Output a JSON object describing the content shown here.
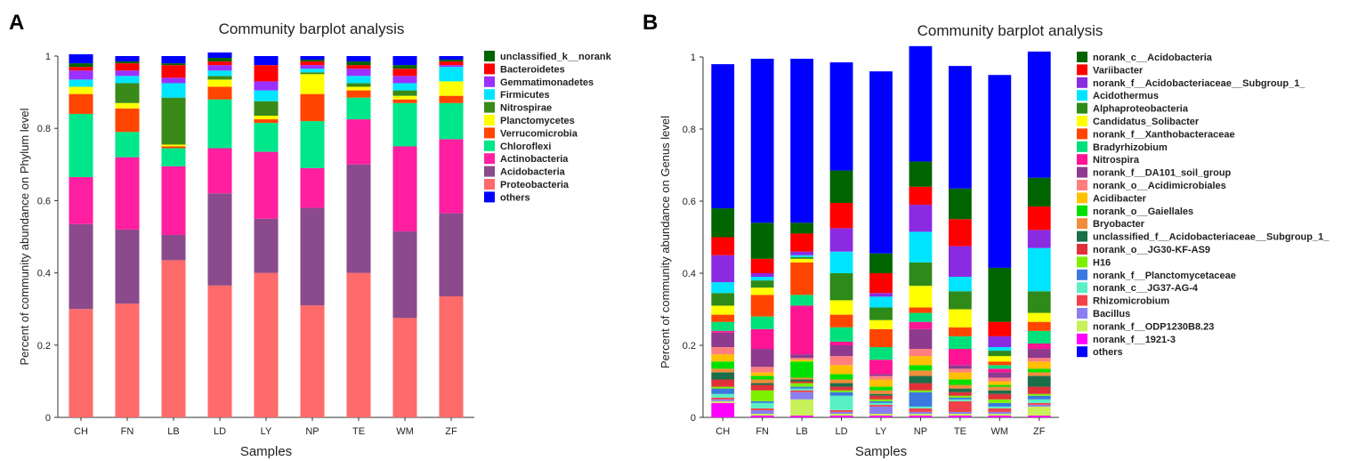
{
  "chart_data": [
    {
      "panel": "A",
      "type": "bar",
      "stacked": true,
      "title": "Community barplot analysis",
      "xlabel": "Samples",
      "ylabel": "Percent of community abundance on Phylum level",
      "ylim": [
        0,
        1
      ],
      "yticks": [
        "0",
        "0.2",
        "0.4",
        "0.6",
        "0.8",
        "1"
      ],
      "categories": [
        "CH",
        "FN",
        "LB",
        "LD",
        "LY",
        "NP",
        "TE",
        "WM",
        "ZF"
      ],
      "series": [
        {
          "name": "Proteobacteria",
          "color": "#ff6a6a",
          "values": [
            0.3,
            0.315,
            0.435,
            0.365,
            0.4,
            0.31,
            0.4,
            0.275,
            0.335
          ]
        },
        {
          "name": "Acidobacteria",
          "color": "#8b4a8b",
          "values": [
            0.235,
            0.205,
            0.07,
            0.255,
            0.15,
            0.27,
            0.3,
            0.24,
            0.23
          ]
        },
        {
          "name": "Actinobacteria",
          "color": "#ff1fa0",
          "values": [
            0.13,
            0.2,
            0.19,
            0.125,
            0.185,
            0.11,
            0.125,
            0.235,
            0.205
          ]
        },
        {
          "name": "Chloroflexi",
          "color": "#00e68a",
          "values": [
            0.175,
            0.07,
            0.05,
            0.135,
            0.08,
            0.13,
            0.06,
            0.12,
            0.1
          ]
        },
        {
          "name": "Verrucomicrobia",
          "color": "#ff4500",
          "values": [
            0.055,
            0.065,
            0.005,
            0.035,
            0.01,
            0.075,
            0.02,
            0.01,
            0.02
          ]
        },
        {
          "name": "Planctomycetes",
          "color": "#ffff00",
          "values": [
            0.02,
            0.015,
            0.005,
            0.02,
            0.01,
            0.055,
            0.01,
            0.01,
            0.04
          ]
        },
        {
          "name": "Nitrospirae",
          "color": "#3a8a1a",
          "values": [
            0.0,
            0.055,
            0.13,
            0.01,
            0.04,
            0.005,
            0.01,
            0.015,
            0.0
          ]
        },
        {
          "name": "Firmicutes",
          "color": "#00e5ff",
          "values": [
            0.02,
            0.02,
            0.04,
            0.015,
            0.03,
            0.01,
            0.02,
            0.02,
            0.04
          ]
        },
        {
          "name": "Gemmatimonadetes",
          "color": "#9b30ff",
          "values": [
            0.025,
            0.015,
            0.015,
            0.015,
            0.025,
            0.01,
            0.02,
            0.02,
            0.005
          ]
        },
        {
          "name": "Bacteroidetes",
          "color": "#ff0000",
          "values": [
            0.01,
            0.02,
            0.035,
            0.01,
            0.045,
            0.01,
            0.01,
            0.02,
            0.01
          ]
        },
        {
          "name": "unclassified_k__norank",
          "color": "#006400",
          "values": [
            0.01,
            0.005,
            0.005,
            0.01,
            0.0,
            0.005,
            0.01,
            0.01,
            0.005
          ]
        },
        {
          "name": "others",
          "color": "#0000ff",
          "values": [
            0.025,
            0.015,
            0.02,
            0.015,
            0.025,
            0.01,
            0.015,
            0.025,
            0.01
          ]
        }
      ],
      "legend_order": [
        "unclassified_k__norank",
        "Bacteroidetes",
        "Gemmatimonadetes",
        "Firmicutes",
        "Nitrospirae",
        "Planctomycetes",
        "Verrucomicrobia",
        "Chloroflexi",
        "Actinobacteria",
        "Acidobacteria",
        "Proteobacteria",
        "others"
      ],
      "legend_placement": "right"
    },
    {
      "panel": "B",
      "type": "bar",
      "stacked": true,
      "title": "Community barplot analysis",
      "xlabel": "Samples",
      "ylabel": "Percent of community abundance on Genus level",
      "ylim": [
        0,
        1
      ],
      "yticks": [
        "0",
        "0.2",
        "0.4",
        "0.6",
        "0.8",
        "1"
      ],
      "categories": [
        "CH",
        "FN",
        "LB",
        "LD",
        "LY",
        "NP",
        "TE",
        "WM",
        "ZF"
      ],
      "series": [
        {
          "name": "norank_f__1921-3",
          "color": "#ff00ff",
          "values": [
            0.04,
            0.005,
            0.005,
            0.005,
            0.005,
            0.005,
            0.005,
            0.005,
            0.005
          ]
        },
        {
          "name": "norank_f__ODP1230B8.23",
          "color": "#c8f05a",
          "values": [
            0.005,
            0.005,
            0.045,
            0.005,
            0.005,
            0.005,
            0.005,
            0.005,
            0.025
          ]
        },
        {
          "name": "Bacillus",
          "color": "#8a7ff0",
          "values": [
            0.005,
            0.01,
            0.02,
            0.005,
            0.02,
            0.005,
            0.005,
            0.005,
            0.005
          ]
        },
        {
          "name": "Rhizomicrobium",
          "color": "#f0414a",
          "values": [
            0.005,
            0.005,
            0.005,
            0.005,
            0.005,
            0.01,
            0.03,
            0.01,
            0.005
          ]
        },
        {
          "name": "norank_c__JG37-AG-4",
          "color": "#59f0c3",
          "values": [
            0.01,
            0.015,
            0.005,
            0.04,
            0.005,
            0.005,
            0.005,
            0.005,
            0.01
          ]
        },
        {
          "name": "norank_f__Planctomycetaceae",
          "color": "#3a78e0",
          "values": [
            0.015,
            0.005,
            0.005,
            0.01,
            0.005,
            0.04,
            0.005,
            0.01,
            0.01
          ]
        },
        {
          "name": "H16",
          "color": "#7cf000",
          "values": [
            0.005,
            0.03,
            0.01,
            0.005,
            0.005,
            0.005,
            0.005,
            0.01,
            0.005
          ]
        },
        {
          "name": "norank_o__JG30-KF-AS9",
          "color": "#e0303a",
          "values": [
            0.02,
            0.015,
            0.005,
            0.01,
            0.01,
            0.02,
            0.01,
            0.015,
            0.02
          ]
        },
        {
          "name": "unclassified_f__Acidobacteriaceae__Subgroup_1_",
          "color": "#1a6e4a",
          "values": [
            0.02,
            0.005,
            0.005,
            0.01,
            0.005,
            0.02,
            0.01,
            0.01,
            0.03
          ]
        },
        {
          "name": "Bryobacter",
          "color": "#f08c3c",
          "values": [
            0.01,
            0.01,
            0.005,
            0.01,
            0.01,
            0.015,
            0.01,
            0.01,
            0.01
          ]
        },
        {
          "name": "norank_o__Gaiellales",
          "color": "#00e000",
          "values": [
            0.02,
            0.01,
            0.045,
            0.015,
            0.01,
            0.015,
            0.015,
            0.005,
            0.01
          ]
        },
        {
          "name": "Acidibacter",
          "color": "#ffc000",
          "values": [
            0.02,
            0.01,
            0.005,
            0.025,
            0.02,
            0.025,
            0.02,
            0.01,
            0.02
          ]
        },
        {
          "name": "norank_o__Acidimicrobiales",
          "color": "#ff7f7f",
          "values": [
            0.02,
            0.015,
            0.005,
            0.025,
            0.01,
            0.02,
            0.01,
            0.01,
            0.01
          ]
        },
        {
          "name": "norank_f__DA101_soil_group",
          "color": "#8e3a8e",
          "values": [
            0.04,
            0.05,
            0.01,
            0.03,
            0.005,
            0.055,
            0.01,
            0.015,
            0.025
          ]
        },
        {
          "name": "Nitrospira",
          "color": "#ff1493",
          "values": [
            0.005,
            0.055,
            0.135,
            0.01,
            0.04,
            0.02,
            0.045,
            0.01,
            0.015
          ]
        },
        {
          "name": "Bradyrhizobium",
          "color": "#00e07a",
          "values": [
            0.025,
            0.035,
            0.03,
            0.04,
            0.035,
            0.025,
            0.035,
            0.01,
            0.035
          ]
        },
        {
          "name": "norank_f__Xanthobacteraceae",
          "color": "#ff4500",
          "values": [
            0.02,
            0.06,
            0.09,
            0.035,
            0.05,
            0.015,
            0.025,
            0.01,
            0.025
          ]
        },
        {
          "name": "Candidatus_Solibacter",
          "color": "#ffff00",
          "values": [
            0.025,
            0.02,
            0.01,
            0.04,
            0.025,
            0.06,
            0.05,
            0.015,
            0.025
          ]
        },
        {
          "name": "Alphaproteobacteria",
          "color": "#2e8b1a",
          "values": [
            0.035,
            0.02,
            0.005,
            0.075,
            0.035,
            0.065,
            0.05,
            0.015,
            0.06
          ]
        },
        {
          "name": "Acidothermus",
          "color": "#00e5ff",
          "values": [
            0.03,
            0.01,
            0.005,
            0.06,
            0.03,
            0.085,
            0.04,
            0.01,
            0.12
          ]
        },
        {
          "name": "norank_f__Acidobacteriaceae__Subgroup_1_",
          "color": "#8a2be2",
          "values": [
            0.075,
            0.01,
            0.01,
            0.065,
            0.01,
            0.075,
            0.085,
            0.03,
            0.05
          ]
        },
        {
          "name": "Variibacter",
          "color": "#ff0000",
          "values": [
            0.05,
            0.04,
            0.05,
            0.07,
            0.055,
            0.05,
            0.075,
            0.04,
            0.065
          ]
        },
        {
          "name": "norank_c__Acidobacteria",
          "color": "#006400",
          "values": [
            0.08,
            0.1,
            0.03,
            0.09,
            0.055,
            0.07,
            0.085,
            0.15,
            0.08
          ]
        },
        {
          "name": "others",
          "color": "#0000ff",
          "values": [
            0.4,
            0.455,
            0.455,
            0.3,
            0.505,
            0.32,
            0.34,
            0.535,
            0.35
          ]
        }
      ],
      "legend_order": [
        "norank_c__Acidobacteria",
        "Variibacter",
        "norank_f__Acidobacteriaceae__Subgroup_1_",
        "Acidothermus",
        "Alphaproteobacteria",
        "Candidatus_Solibacter",
        "norank_f__Xanthobacteraceae",
        "Bradyrhizobium",
        "Nitrospira",
        "norank_f__DA101_soil_group",
        "norank_o__Acidimicrobiales",
        "Acidibacter",
        "norank_o__Gaiellales",
        "Bryobacter",
        "unclassified_f__Acidobacteriaceae__Subgroup_1_",
        "norank_o__JG30-KF-AS9",
        "H16",
        "norank_f__Planctomycetaceae",
        "norank_c__JG37-AG-4",
        "Rhizomicrobium",
        "Bacillus",
        "norank_f__ODP1230B8.23",
        "norank_f__1921-3",
        "others"
      ],
      "legend_placement": "right"
    }
  ]
}
